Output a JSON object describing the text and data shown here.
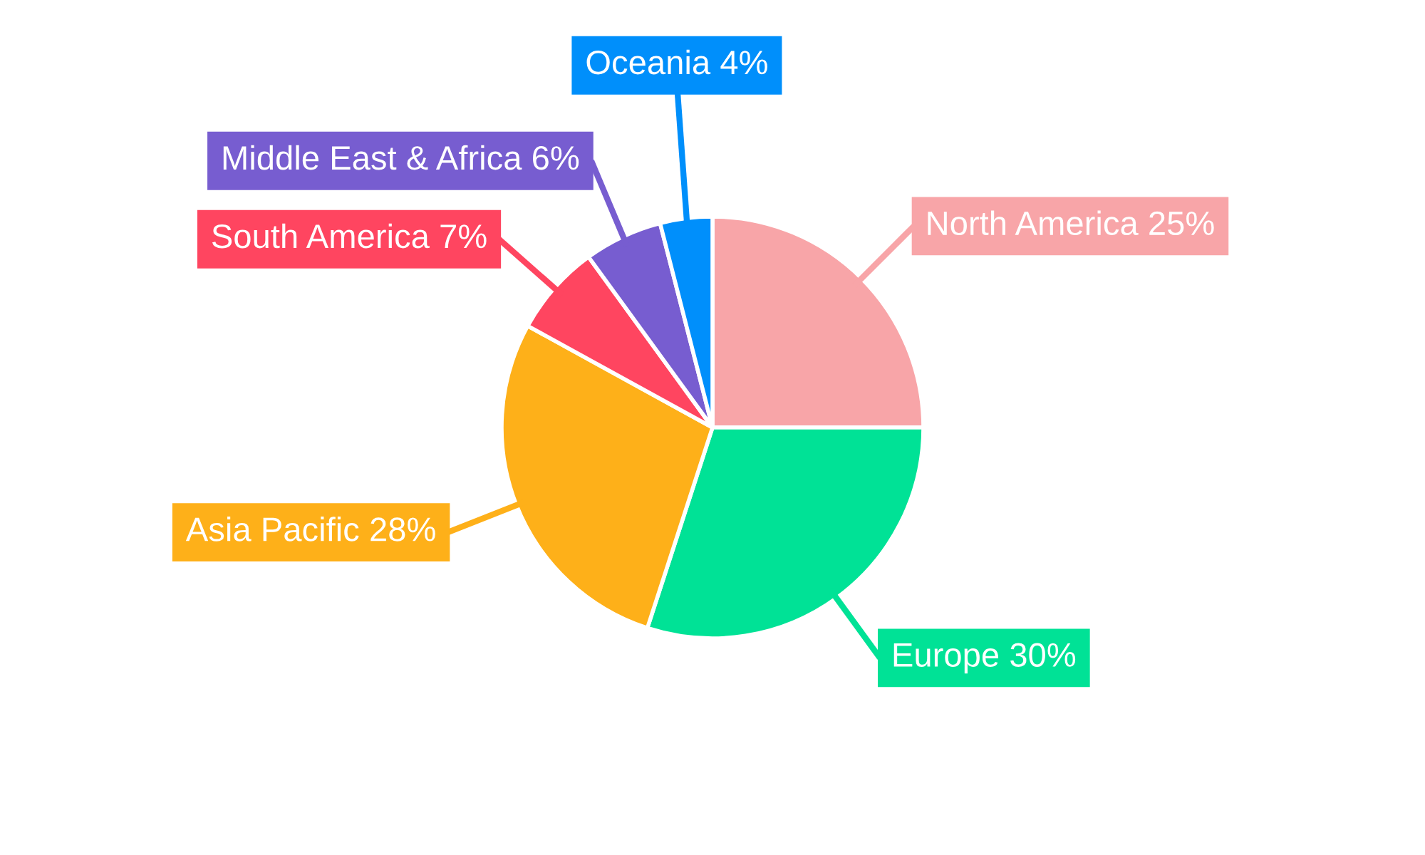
{
  "chart_data": {
    "type": "pie",
    "categories": [
      "North America 25%",
      "Europe 30%",
      "Asia Pacific 28%",
      "South America 7%",
      "Middle East & Africa 6%",
      "Oceania 4%"
    ],
    "values": [
      25,
      30,
      28,
      7,
      6,
      4
    ],
    "colors": [
      "#f8a5a8",
      "#00e296",
      "#feb019",
      "#ff4560",
      "#775dd0",
      "#008ffb"
    ]
  }
}
